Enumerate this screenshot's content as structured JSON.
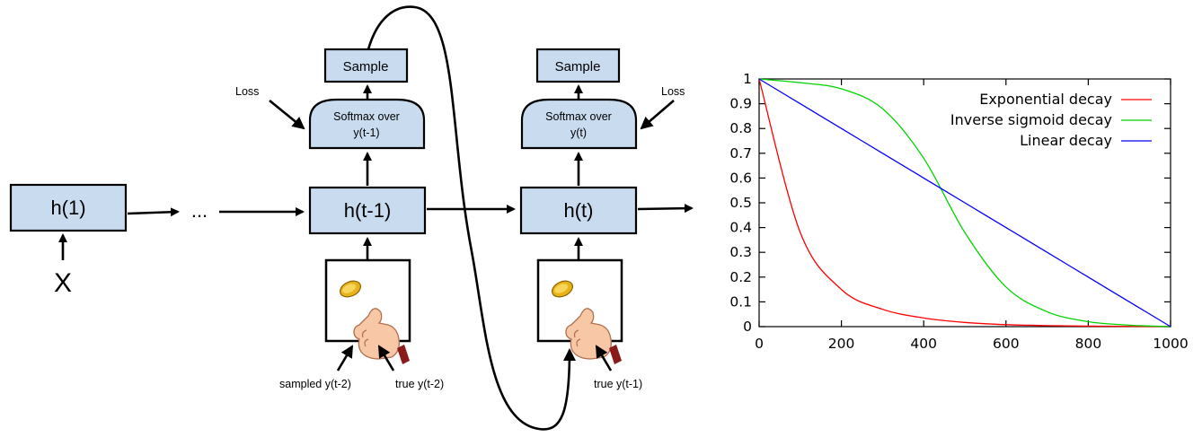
{
  "diagram": {
    "h1_label": "h(1)",
    "ellipsis": "...",
    "input_label": "X",
    "left_step": {
      "hidden_label": "h(t-1)",
      "softmax_label_line1": "Softmax over",
      "softmax_label_line2": "y(t-1)",
      "sample_label": "Sample",
      "loss_label": "Loss",
      "input_sampled_label": "sampled y(t-2)",
      "input_true_label": "true y(t-2)"
    },
    "right_step": {
      "hidden_label": "h(t)",
      "softmax_label_line1": "Softmax over",
      "softmax_label_line2": "y(t)",
      "sample_label": "Sample",
      "loss_label": "Loss",
      "input_true_label": "true y(t-1)"
    },
    "coin_flip_icon": "coin-flip-hand-icon"
  },
  "chart_data": {
    "type": "line",
    "x": [
      0,
      100,
      200,
      300,
      400,
      500,
      600,
      700,
      800,
      900,
      1000
    ],
    "series": [
      {
        "name": "Exponential decay",
        "color": "#ff0000",
        "values": [
          1.0,
          0.38,
          0.15,
          0.07,
          0.035,
          0.017,
          0.008,
          0.004,
          0.002,
          0.001,
          0.0
        ]
      },
      {
        "name": "Inverse sigmoid decay",
        "color": "#00d400",
        "values": [
          1.0,
          0.985,
          0.96,
          0.88,
          0.68,
          0.38,
          0.16,
          0.06,
          0.02,
          0.006,
          0.0
        ]
      },
      {
        "name": "Linear decay",
        "color": "#0000ff",
        "values": [
          1.0,
          0.9,
          0.8,
          0.7,
          0.6,
          0.5,
          0.4,
          0.3,
          0.2,
          0.1,
          0.0
        ]
      }
    ],
    "xlim": [
      0,
      1000
    ],
    "ylim": [
      0,
      1
    ],
    "xticks": [
      "0",
      "200",
      "400",
      "600",
      "800",
      "1000"
    ],
    "yticks": [
      "0",
      "0.1",
      "0.2",
      "0.3",
      "0.4",
      "0.5",
      "0.6",
      "0.7",
      "0.8",
      "0.9",
      "1"
    ],
    "legend_position": "top-right",
    "grid": false
  }
}
